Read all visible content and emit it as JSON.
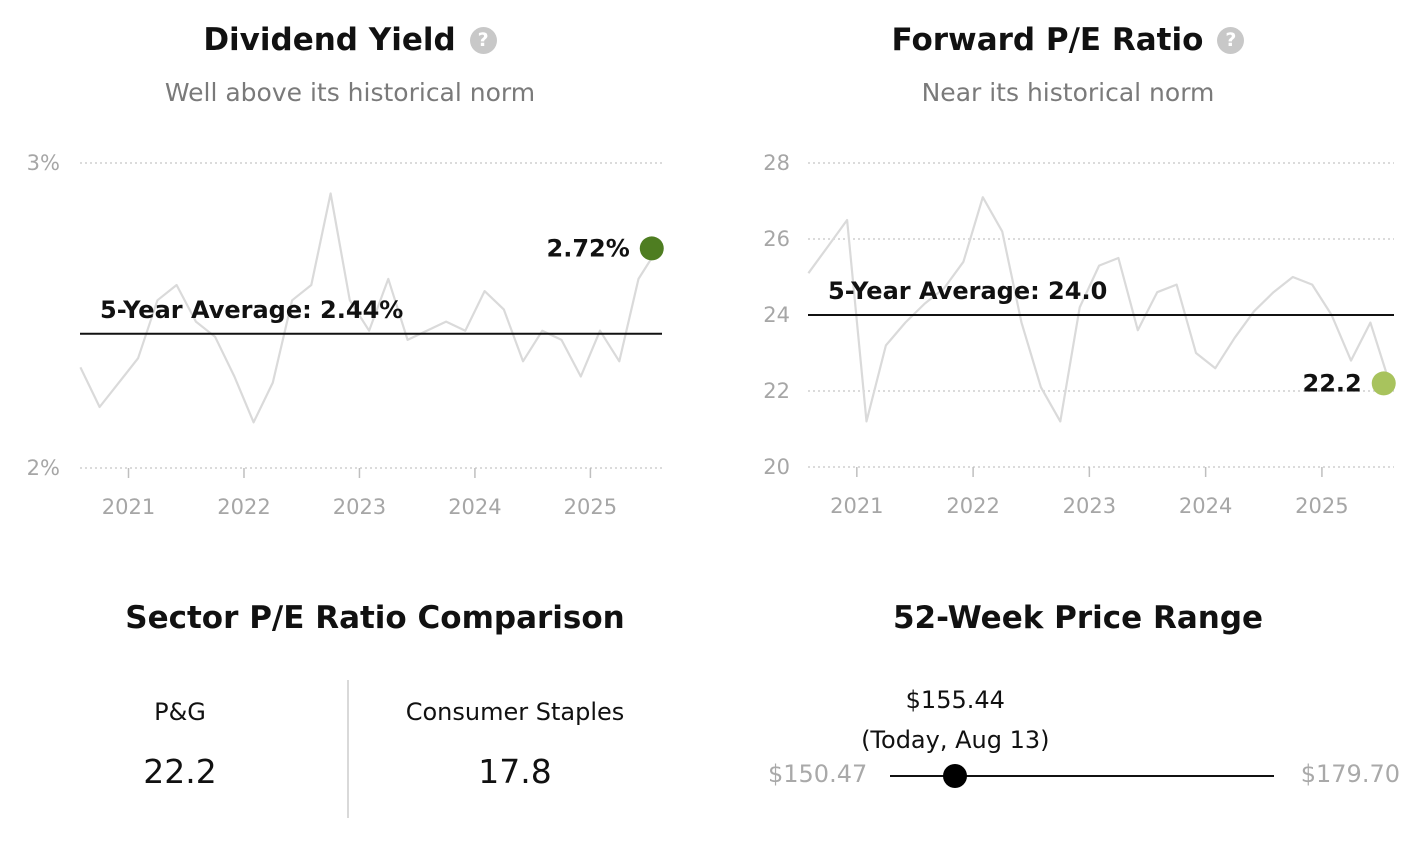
{
  "chart_data": [
    {
      "type": "line",
      "title": "Dividend Yield",
      "subtitle": "Well above its historical norm",
      "x_ticks": [
        "2021",
        "2022",
        "2023",
        "2024",
        "2025"
      ],
      "y_ticks": [
        "3%",
        "2%"
      ],
      "ylim": [
        2.0,
        3.0
      ],
      "y_unit": "%",
      "grid": true,
      "average_label": "5-Year Average: 2.44%",
      "average_value": 2.44,
      "current_label": "2.72%",
      "current_value": 2.72,
      "series": [
        {
          "x": [
            "2020-08",
            "2020-10",
            "2020-12",
            "2021-02",
            "2021-04",
            "2021-06",
            "2021-08",
            "2021-10",
            "2021-12",
            "2022-02",
            "2022-04",
            "2022-06",
            "2022-08",
            "2022-10",
            "2022-12",
            "2023-02",
            "2023-04",
            "2023-06",
            "2023-08",
            "2023-10",
            "2023-12",
            "2024-02",
            "2024-04",
            "2024-06",
            "2024-08",
            "2024-10",
            "2024-12",
            "2025-02",
            "2025-04",
            "2025-06",
            "2025-08"
          ],
          "values": [
            2.33,
            2.2,
            2.28,
            2.36,
            2.55,
            2.6,
            2.48,
            2.43,
            2.3,
            2.15,
            2.28,
            2.55,
            2.6,
            2.9,
            2.55,
            2.45,
            2.62,
            2.42,
            2.45,
            2.48,
            2.45,
            2.58,
            2.52,
            2.35,
            2.45,
            2.42,
            2.3,
            2.45,
            2.35,
            2.62,
            2.72
          ]
        }
      ],
      "colors": {
        "line": "#dadada",
        "average": "#111111",
        "current_dot": "#4e7d21"
      }
    },
    {
      "type": "line",
      "title": "Forward P/E Ratio",
      "subtitle": "Near its historical norm",
      "x_ticks": [
        "2021",
        "2022",
        "2023",
        "2024",
        "2025"
      ],
      "y_ticks": [
        "28",
        "26",
        "24",
        "22",
        "20"
      ],
      "ylim": [
        20,
        28
      ],
      "grid": true,
      "average_label": "5-Year Average: 24.0",
      "average_value": 24.0,
      "current_label": "22.2",
      "current_value": 22.2,
      "series": [
        {
          "x": [
            "2020-08",
            "2020-10",
            "2020-12",
            "2021-02",
            "2021-04",
            "2021-06",
            "2021-08",
            "2021-10",
            "2021-12",
            "2022-02",
            "2022-04",
            "2022-06",
            "2022-08",
            "2022-10",
            "2022-12",
            "2023-02",
            "2023-04",
            "2023-06",
            "2023-08",
            "2023-10",
            "2023-12",
            "2024-02",
            "2024-04",
            "2024-06",
            "2024-08",
            "2024-10",
            "2024-12",
            "2025-02",
            "2025-04",
            "2025-06",
            "2025-08"
          ],
          "values": [
            25.1,
            25.8,
            26.5,
            21.2,
            23.2,
            23.8,
            24.3,
            24.7,
            25.4,
            27.1,
            26.2,
            23.8,
            22.1,
            21.2,
            24.2,
            25.3,
            25.5,
            23.6,
            24.6,
            24.8,
            23.0,
            22.6,
            23.4,
            24.1,
            24.6,
            25.0,
            24.8,
            24.0,
            22.8,
            23.8,
            22.2
          ]
        }
      ],
      "colors": {
        "line": "#dadada",
        "average": "#111111",
        "current_dot": "#a8c35d"
      }
    }
  ],
  "help_glyph": "?",
  "sector": {
    "title": "Sector P/E Ratio Comparison",
    "items": [
      {
        "label": "P&G",
        "value": "22.2"
      },
      {
        "label": "Consumer Staples",
        "value": "17.8"
      }
    ]
  },
  "price_range": {
    "title": "52-Week Price Range",
    "low": "$150.47",
    "high": "$179.70",
    "low_value": 150.47,
    "high_value": 179.7,
    "current_price": "$155.44",
    "current_value": 155.44,
    "current_note": "(Today, Aug 13)"
  }
}
